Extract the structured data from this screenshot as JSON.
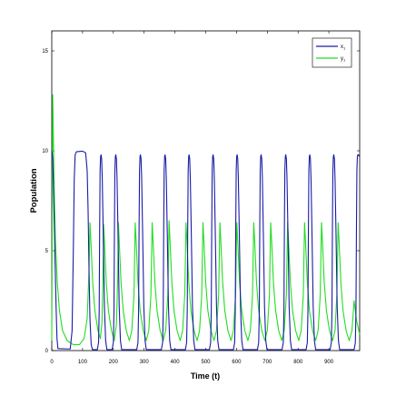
{
  "chart_data": {
    "type": "line",
    "xlabel": "Time (t)",
    "ylabel": "Population",
    "xlim": [
      0,
      1000
    ],
    "ylim": [
      0,
      16
    ],
    "x_ticks": [
      0,
      100,
      200,
      300,
      400,
      500,
      600,
      700,
      800,
      900
    ],
    "y_ticks": [
      0,
      5,
      10,
      15
    ],
    "grid": false,
    "legend_position": "top-right",
    "series": [
      {
        "name": "x",
        "legend_subscript": "1",
        "color": "#1a1aa8",
        "points": [
          [
            0,
            10.0
          ],
          [
            3,
            9.6
          ],
          [
            6,
            8.0
          ],
          [
            10,
            5.0
          ],
          [
            14,
            2.2
          ],
          [
            17,
            0.6
          ],
          [
            20,
            0.1
          ],
          [
            60,
            0.08
          ],
          [
            66,
            1.0
          ],
          [
            70,
            5.0
          ],
          [
            73,
            8.6
          ],
          [
            76,
            9.8
          ],
          [
            80,
            9.95
          ],
          [
            100,
            9.98
          ],
          [
            110,
            9.9
          ],
          [
            115,
            9.0
          ],
          [
            118,
            7.0
          ],
          [
            121,
            4.0
          ],
          [
            124,
            1.6
          ],
          [
            128,
            0.3
          ],
          [
            132,
            0.05
          ],
          [
            148,
            0.05
          ],
          [
            152,
            0.4
          ],
          [
            154,
            2.0
          ],
          [
            155.5,
            6.0
          ],
          [
            157,
            9.0
          ],
          [
            158.5,
            9.7
          ],
          [
            160,
            9.8
          ],
          [
            162,
            9.6
          ],
          [
            164,
            8.6
          ],
          [
            167,
            6.0
          ],
          [
            171,
            2.2
          ],
          [
            175,
            0.5
          ],
          [
            179,
            0.05
          ],
          [
            196,
            0.05
          ],
          [
            200,
            0.4
          ],
          [
            202,
            2.0
          ],
          [
            203.5,
            6.0
          ],
          [
            205,
            9.0
          ],
          [
            206.5,
            9.7
          ],
          [
            208,
            9.8
          ],
          [
            210,
            9.6
          ],
          [
            212,
            8.6
          ],
          [
            215,
            6.0
          ],
          [
            219,
            2.2
          ],
          [
            223,
            0.5
          ],
          [
            227,
            0.05
          ],
          [
            276,
            0.05
          ],
          [
            280,
            0.4
          ],
          [
            282,
            2.0
          ],
          [
            283.5,
            6.0
          ],
          [
            285,
            9.0
          ],
          [
            286.5,
            9.7
          ],
          [
            288,
            9.8
          ],
          [
            290,
            9.6
          ],
          [
            292,
            8.6
          ],
          [
            295,
            6.0
          ],
          [
            299,
            2.2
          ],
          [
            303,
            0.5
          ],
          [
            307,
            0.05
          ],
          [
            356,
            0.05
          ],
          [
            360,
            0.4
          ],
          [
            362,
            2.0
          ],
          [
            363.5,
            6.0
          ],
          [
            365,
            9.0
          ],
          [
            366.5,
            9.7
          ],
          [
            368,
            9.8
          ],
          [
            370,
            9.6
          ],
          [
            372,
            8.6
          ],
          [
            375,
            6.0
          ],
          [
            379,
            2.2
          ],
          [
            383,
            0.5
          ],
          [
            387,
            0.05
          ],
          [
            434,
            0.05
          ],
          [
            438,
            0.4
          ],
          [
            440,
            2.0
          ],
          [
            441.5,
            6.0
          ],
          [
            443,
            9.0
          ],
          [
            444.5,
            9.7
          ],
          [
            446,
            9.8
          ],
          [
            448,
            9.6
          ],
          [
            450,
            8.6
          ],
          [
            453,
            6.0
          ],
          [
            457,
            2.2
          ],
          [
            461,
            0.5
          ],
          [
            465,
            0.05
          ],
          [
            512,
            0.05
          ],
          [
            516,
            0.4
          ],
          [
            518,
            2.0
          ],
          [
            519.5,
            6.0
          ],
          [
            521,
            9.0
          ],
          [
            522.5,
            9.7
          ],
          [
            524,
            9.8
          ],
          [
            526,
            9.6
          ],
          [
            528,
            8.6
          ],
          [
            531,
            6.0
          ],
          [
            535,
            2.2
          ],
          [
            539,
            0.5
          ],
          [
            543,
            0.05
          ],
          [
            590,
            0.05
          ],
          [
            594,
            0.4
          ],
          [
            596,
            2.0
          ],
          [
            597.5,
            6.0
          ],
          [
            599,
            9.0
          ],
          [
            600.5,
            9.7
          ],
          [
            602,
            9.8
          ],
          [
            604,
            9.6
          ],
          [
            606,
            8.6
          ],
          [
            609,
            6.0
          ],
          [
            613,
            2.2
          ],
          [
            617,
            0.5
          ],
          [
            621,
            0.05
          ],
          [
            668,
            0.05
          ],
          [
            672,
            0.4
          ],
          [
            674,
            2.0
          ],
          [
            675.5,
            6.0
          ],
          [
            677,
            9.0
          ],
          [
            678.5,
            9.7
          ],
          [
            680,
            9.8
          ],
          [
            682,
            9.6
          ],
          [
            684,
            8.6
          ],
          [
            687,
            6.0
          ],
          [
            691,
            2.2
          ],
          [
            695,
            0.5
          ],
          [
            699,
            0.05
          ],
          [
            748,
            0.05
          ],
          [
            752,
            0.4
          ],
          [
            754,
            2.0
          ],
          [
            755.5,
            6.0
          ],
          [
            757,
            9.0
          ],
          [
            758.5,
            9.7
          ],
          [
            760,
            9.8
          ],
          [
            762,
            9.6
          ],
          [
            764,
            8.6
          ],
          [
            767,
            6.0
          ],
          [
            771,
            2.2
          ],
          [
            775,
            0.5
          ],
          [
            779,
            0.05
          ],
          [
            826,
            0.05
          ],
          [
            830,
            0.4
          ],
          [
            832,
            2.0
          ],
          [
            833.5,
            6.0
          ],
          [
            835,
            9.0
          ],
          [
            836.5,
            9.7
          ],
          [
            838,
            9.8
          ],
          [
            840,
            9.6
          ],
          [
            842,
            8.6
          ],
          [
            845,
            6.0
          ],
          [
            849,
            2.2
          ],
          [
            853,
            0.5
          ],
          [
            857,
            0.05
          ],
          [
            904,
            0.05
          ],
          [
            908,
            0.4
          ],
          [
            910,
            2.0
          ],
          [
            911.5,
            6.0
          ],
          [
            913,
            9.0
          ],
          [
            914.5,
            9.7
          ],
          [
            916,
            9.8
          ],
          [
            918,
            9.6
          ],
          [
            920,
            8.6
          ],
          [
            923,
            6.0
          ],
          [
            927,
            2.2
          ],
          [
            931,
            0.5
          ],
          [
            935,
            0.05
          ],
          [
            982,
            0.05
          ],
          [
            986,
            0.4
          ],
          [
            988,
            2.0
          ],
          [
            989.5,
            6.0
          ],
          [
            991,
            9.0
          ],
          [
            992.5,
            9.7
          ],
          [
            994,
            9.8
          ],
          [
            996,
            9.8
          ],
          [
            1000,
            9.7
          ]
        ]
      },
      {
        "name": "y",
        "legend_subscript": "1",
        "color": "#22dd22",
        "points": [
          [
            0,
            0.5
          ],
          [
            2,
            8.0
          ],
          [
            3,
            12.8
          ],
          [
            5,
            11.0
          ],
          [
            8,
            8.0
          ],
          [
            12,
            5.5
          ],
          [
            18,
            3.4
          ],
          [
            25,
            2.0
          ],
          [
            35,
            1.0
          ],
          [
            50,
            0.5
          ],
          [
            70,
            0.3
          ],
          [
            90,
            0.3
          ],
          [
            105,
            0.6
          ],
          [
            115,
            1.6
          ],
          [
            121,
            4.0
          ],
          [
            124,
            6.4
          ],
          [
            127,
            5.5
          ],
          [
            133,
            3.4
          ],
          [
            140,
            2.0
          ],
          [
            150,
            1.0
          ],
          [
            158,
            0.6
          ],
          [
            163,
            1.4
          ],
          [
            166,
            3.5
          ],
          [
            168.5,
            6.3
          ],
          [
            171,
            5.5
          ],
          [
            177,
            3.4
          ],
          [
            184,
            2.0
          ],
          [
            194,
            1.0
          ],
          [
            203,
            0.5
          ],
          [
            210,
            1.3
          ],
          [
            214,
            3.5
          ],
          [
            216.5,
            6.4
          ],
          [
            219,
            5.5
          ],
          [
            225,
            3.4
          ],
          [
            232,
            2.0
          ],
          [
            242,
            1.0
          ],
          [
            252,
            0.5
          ],
          [
            260,
            1.0
          ],
          [
            267,
            2.8
          ],
          [
            271,
            6.4
          ],
          [
            274,
            5.5
          ],
          [
            280,
            3.4
          ],
          [
            287,
            2.0
          ],
          [
            297,
            1.0
          ],
          [
            307,
            0.5
          ],
          [
            315,
            1.0
          ],
          [
            322,
            2.8
          ],
          [
            326,
            6.4
          ],
          [
            329,
            5.5
          ],
          [
            335,
            3.4
          ],
          [
            342,
            2.0
          ],
          [
            352,
            1.0
          ],
          [
            362,
            0.5
          ],
          [
            370,
            1.0
          ],
          [
            377,
            2.8
          ],
          [
            381,
            6.5
          ],
          [
            384,
            5.5
          ],
          [
            390,
            3.4
          ],
          [
            397,
            2.0
          ],
          [
            407,
            1.0
          ],
          [
            417,
            0.5
          ],
          [
            425,
            1.0
          ],
          [
            432,
            2.8
          ],
          [
            436,
            6.4
          ],
          [
            439,
            5.5
          ],
          [
            445,
            3.4
          ],
          [
            452,
            2.0
          ],
          [
            462,
            1.0
          ],
          [
            472,
            0.5
          ],
          [
            480,
            1.0
          ],
          [
            487,
            2.8
          ],
          [
            491,
            6.4
          ],
          [
            494,
            5.5
          ],
          [
            500,
            3.4
          ],
          [
            507,
            2.0
          ],
          [
            517,
            1.0
          ],
          [
            527,
            0.5
          ],
          [
            535,
            1.0
          ],
          [
            542,
            2.8
          ],
          [
            546,
            6.4
          ],
          [
            549,
            5.5
          ],
          [
            555,
            3.4
          ],
          [
            562,
            2.0
          ],
          [
            572,
            1.0
          ],
          [
            582,
            0.5
          ],
          [
            590,
            1.0
          ],
          [
            597,
            2.8
          ],
          [
            601,
            6.4
          ],
          [
            604,
            5.5
          ],
          [
            610,
            3.4
          ],
          [
            617,
            2.0
          ],
          [
            627,
            1.0
          ],
          [
            637,
            0.5
          ],
          [
            645,
            1.0
          ],
          [
            652,
            2.8
          ],
          [
            656,
            6.4
          ],
          [
            659,
            5.5
          ],
          [
            665,
            3.4
          ],
          [
            672,
            2.0
          ],
          [
            682,
            1.0
          ],
          [
            692,
            0.5
          ],
          [
            700,
            1.0
          ],
          [
            707,
            2.8
          ],
          [
            711,
            6.4
          ],
          [
            714,
            5.5
          ],
          [
            720,
            3.4
          ],
          [
            727,
            2.0
          ],
          [
            737,
            1.0
          ],
          [
            747,
            0.5
          ],
          [
            755,
            1.0
          ],
          [
            762,
            2.8
          ],
          [
            766,
            6.4
          ],
          [
            769,
            5.5
          ],
          [
            775,
            3.4
          ],
          [
            782,
            2.0
          ],
          [
            792,
            1.0
          ],
          [
            802,
            0.5
          ],
          [
            810,
            1.0
          ],
          [
            817,
            2.8
          ],
          [
            821,
            6.4
          ],
          [
            824,
            5.5
          ],
          [
            830,
            3.4
          ],
          [
            837,
            2.0
          ],
          [
            847,
            1.0
          ],
          [
            857,
            0.5
          ],
          [
            865,
            1.0
          ],
          [
            872,
            2.8
          ],
          [
            876,
            6.4
          ],
          [
            879,
            5.5
          ],
          [
            885,
            3.4
          ],
          [
            892,
            2.0
          ],
          [
            902,
            1.0
          ],
          [
            912,
            0.5
          ],
          [
            920,
            1.0
          ],
          [
            926,
            2.8
          ],
          [
            930,
            6.4
          ],
          [
            933,
            5.5
          ],
          [
            939,
            3.4
          ],
          [
            946,
            2.0
          ],
          [
            956,
            1.0
          ],
          [
            966,
            0.5
          ],
          [
            975,
            1.0
          ],
          [
            982,
            2.5
          ],
          [
            990,
            1.5
          ],
          [
            1000,
            0.8
          ]
        ]
      }
    ]
  }
}
